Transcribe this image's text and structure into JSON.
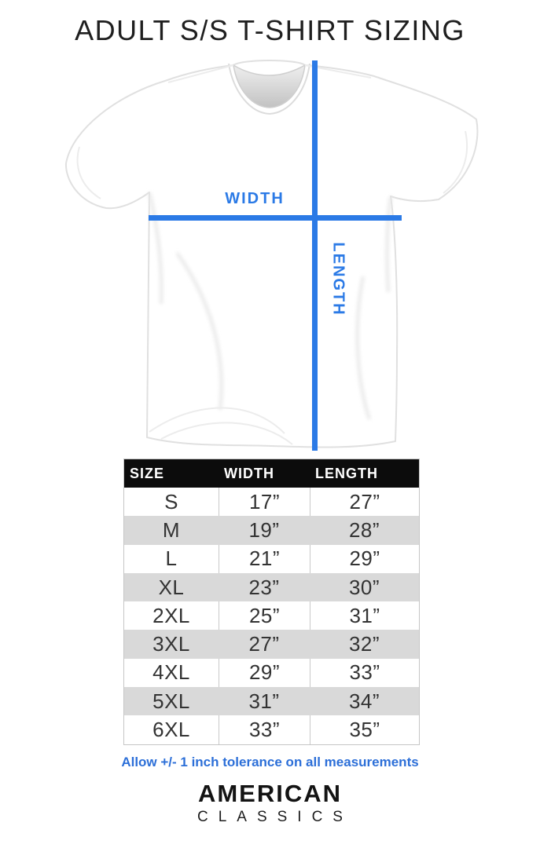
{
  "title": "ADULT S/S T-SHIRT SIZING",
  "diagram": {
    "width_label": "WIDTH",
    "length_label": "LENGTH"
  },
  "chart_data": {
    "type": "table",
    "title": "ADULT S/S T-SHIRT SIZING",
    "columns": [
      "SIZE",
      "WIDTH",
      "LENGTH"
    ],
    "rows": [
      [
        "S",
        "17”",
        "27”"
      ],
      [
        "M",
        "19”",
        "28”"
      ],
      [
        "L",
        "21”",
        "29”"
      ],
      [
        "XL",
        "23”",
        "30”"
      ],
      [
        "2XL",
        "25”",
        "31”"
      ],
      [
        "3XL",
        "27”",
        "32”"
      ],
      [
        "4XL",
        "29”",
        "33”"
      ],
      [
        "5XL",
        "31”",
        "34”"
      ],
      [
        "6XL",
        "33”",
        "35”"
      ]
    ],
    "sizes": [
      "S",
      "M",
      "L",
      "XL",
      "2XL",
      "3XL",
      "4XL",
      "5XL",
      "6XL"
    ],
    "width_inches": [
      17,
      19,
      21,
      23,
      25,
      27,
      29,
      31,
      33
    ],
    "length_inches": [
      27,
      28,
      29,
      30,
      31,
      32,
      33,
      34,
      35
    ],
    "units": "inches",
    "note": "Allow +/- 1 inch tolerance on all measurements"
  },
  "tolerance_note": "Allow +/- 1 inch tolerance on all measurements",
  "brand": {
    "line1": "AMERICAN",
    "line2": "CLASSICS"
  },
  "colors": {
    "accent_blue": "#2b7ae6",
    "note_blue": "#2c6fd8",
    "table_header_bg": "#0c0c0c",
    "table_header_text": "#ffffff",
    "row_alt_gray": "#d9d9d9"
  }
}
